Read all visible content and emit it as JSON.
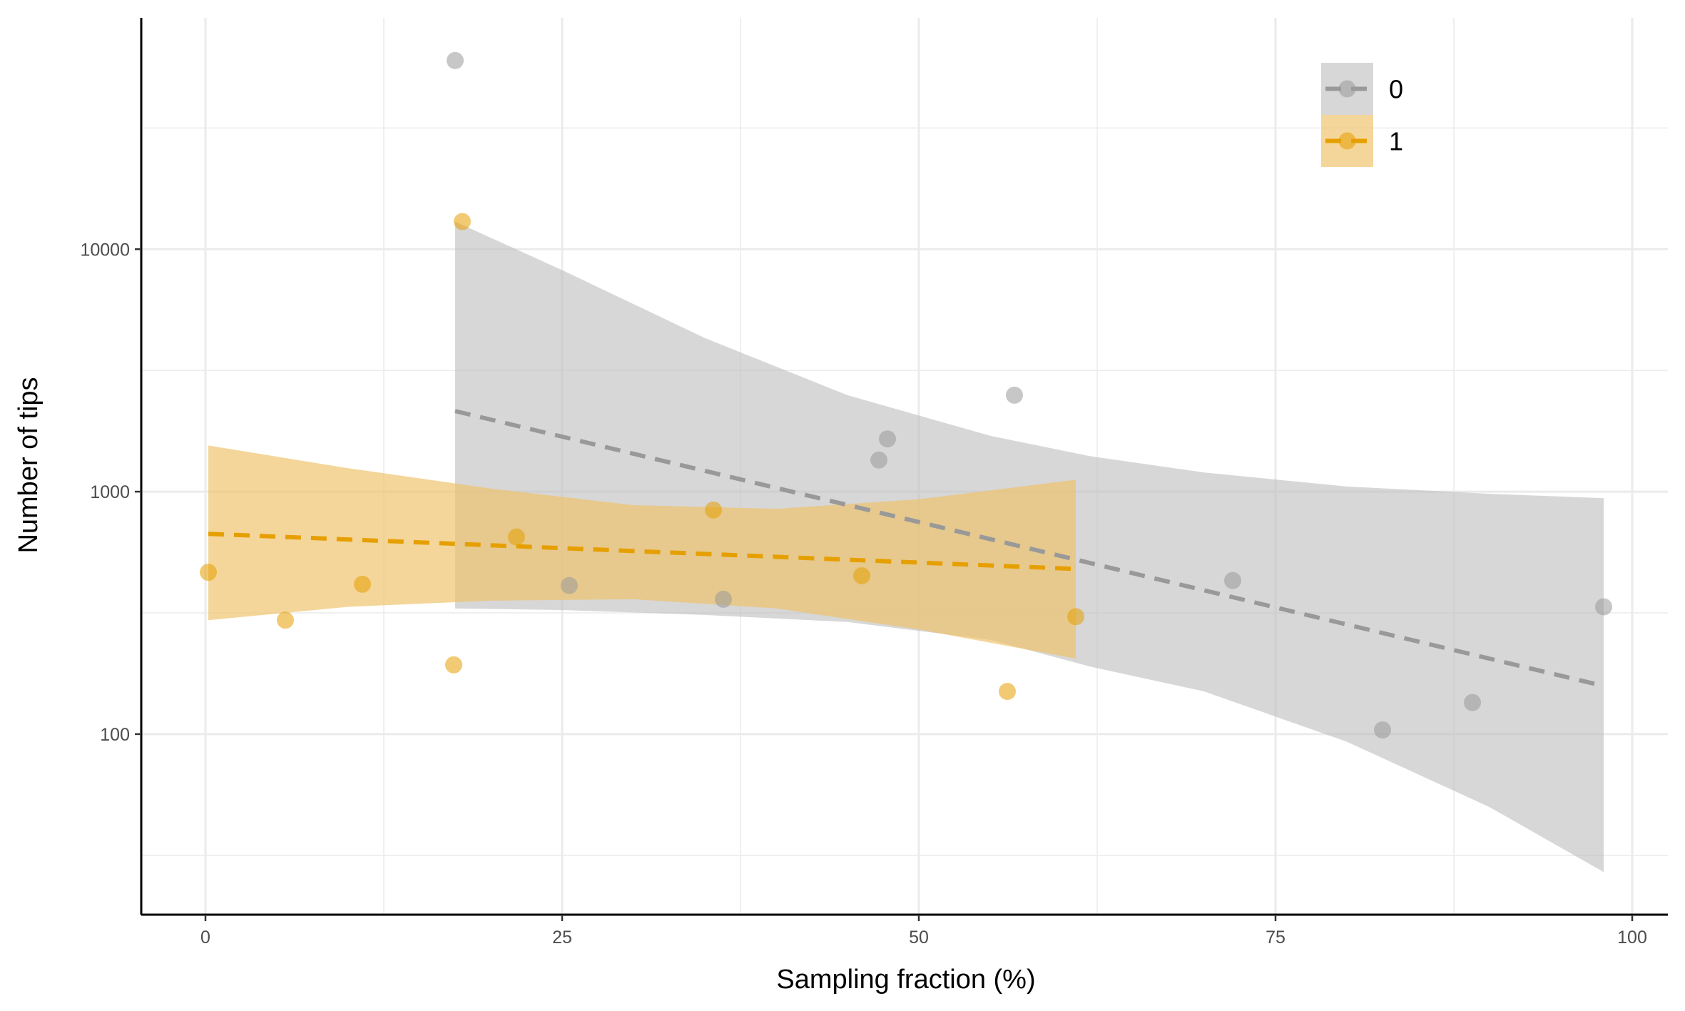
{
  "chart_data": {
    "type": "scatter",
    "xlabel": "Sampling fraction (%)",
    "ylabel": "Number of tips",
    "xlim": [
      -4.5,
      102.5
    ],
    "ylim": [
      18,
      90000
    ],
    "y_scale": "log10",
    "x_ticks": [
      0,
      25,
      50,
      75,
      100
    ],
    "x_tick_labels": [
      "0",
      "25",
      "50",
      "75",
      "100"
    ],
    "y_ticks": [
      100,
      1000,
      10000
    ],
    "y_tick_labels": [
      "100",
      "1000",
      "10000"
    ],
    "grid": true,
    "legend_position": "top-right",
    "series": [
      {
        "name": "0",
        "color": "#999999",
        "points": [
          {
            "x": 17.5,
            "y": 60000
          },
          {
            "x": 25.5,
            "y": 410
          },
          {
            "x": 36.3,
            "y": 360
          },
          {
            "x": 47.2,
            "y": 1350
          },
          {
            "x": 47.8,
            "y": 1650
          },
          {
            "x": 56.7,
            "y": 2500
          },
          {
            "x": 72.0,
            "y": 430
          },
          {
            "x": 82.5,
            "y": 104
          },
          {
            "x": 88.8,
            "y": 135
          },
          {
            "x": 98.0,
            "y": 335
          }
        ],
        "trend": {
          "x": [
            17.5,
            98.0
          ],
          "y": [
            2150,
            158
          ]
        },
        "band": {
          "x": [
            17.5,
            25,
            35,
            45,
            55,
            62,
            70,
            80,
            90,
            98
          ],
          "upper": [
            13000,
            8200,
            4300,
            2500,
            1700,
            1400,
            1200,
            1050,
            980,
            940
          ],
          "lower": [
            330,
            325,
            310,
            290,
            245,
            190,
            150,
            93,
            50,
            27
          ]
        }
      },
      {
        "name": "1",
        "color": "#E69F00",
        "points": [
          {
            "x": 0.2,
            "y": 465
          },
          {
            "x": 5.6,
            "y": 295
          },
          {
            "x": 11.0,
            "y": 415
          },
          {
            "x": 17.4,
            "y": 193
          },
          {
            "x": 18.0,
            "y": 13000
          },
          {
            "x": 21.8,
            "y": 650
          },
          {
            "x": 35.6,
            "y": 840
          },
          {
            "x": 46.0,
            "y": 450
          },
          {
            "x": 56.2,
            "y": 150
          },
          {
            "x": 61.0,
            "y": 305
          }
        ],
        "trend": {
          "x": [
            0.2,
            61.0
          ],
          "y": [
            670,
            480
          ]
        },
        "band": {
          "x": [
            0.2,
            10,
            20,
            30,
            40,
            50,
            61
          ],
          "upper": [
            1550,
            1250,
            1030,
            880,
            850,
            930,
            1120
          ],
          "lower": [
            295,
            335,
            355,
            360,
            330,
            270,
            205
          ]
        }
      }
    ],
    "legend": [
      {
        "label": "0",
        "color": "#999999"
      },
      {
        "label": "1",
        "color": "#E69F00"
      }
    ]
  }
}
